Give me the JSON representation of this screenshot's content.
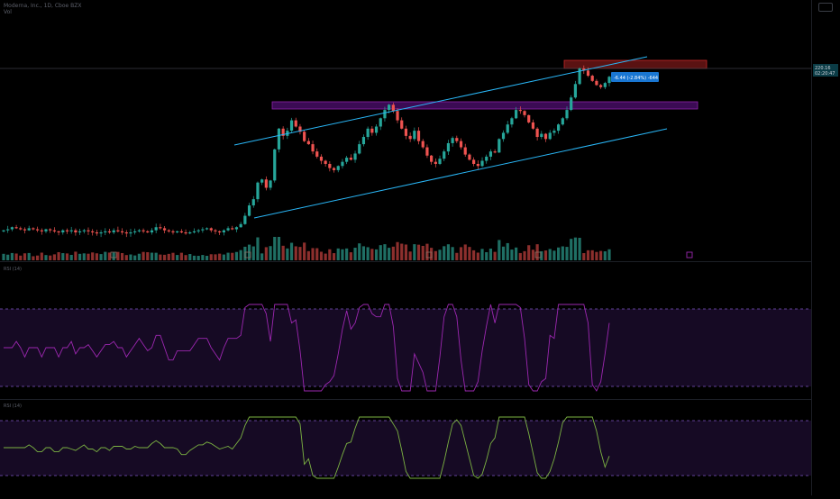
{
  "header": {
    "symbol": "Moderna, Inc., 1D, Cboe BZX",
    "sub": "Vol"
  },
  "last_price": {
    "value": "220.16",
    "countdown": "02:20:47",
    "change_label": "-6.44 (-2.84%) -644"
  },
  "rsi_panel": {
    "title": "RSI (14)"
  },
  "second_panel": {
    "title": "RSI (14)"
  },
  "colors": {
    "background": "#000000",
    "up": "#26a69a",
    "down": "#ef5350",
    "channel": "#29b6f6",
    "resistance_zone": "#7b1fa2",
    "top_zone": "#b71c1c",
    "rsi_band_fill": "#1d0a2e",
    "rsi_line": "#9c27b0",
    "osc_line": "#7cb342"
  },
  "chart_data": [
    {
      "type": "candlestick",
      "description_free": true,
      "x_unit": "trading days (index 0 = first visible bar)",
      "closes_estimated": [
        72,
        73,
        75,
        74,
        73,
        72,
        74,
        73,
        72,
        71,
        73,
        72,
        71,
        70,
        72,
        71,
        72,
        70,
        71,
        72,
        71,
        70,
        69,
        70,
        71,
        70,
        72,
        71,
        70,
        69,
        70,
        71,
        72,
        71,
        70,
        72,
        75,
        74,
        72,
        71,
        70,
        71,
        70,
        69,
        70,
        71,
        72,
        73,
        74,
        72,
        71,
        70,
        72,
        74,
        73,
        75,
        78,
        86,
        96,
        102,
        118,
        121,
        113,
        120,
        150,
        170,
        163,
        168,
        178,
        172,
        167,
        158,
        155,
        148,
        143,
        139,
        136,
        132,
        130,
        134,
        138,
        142,
        140,
        146,
        155,
        162,
        170,
        166,
        172,
        180,
        188,
        193,
        187,
        178,
        170,
        163,
        160,
        168,
        158,
        152,
        144,
        138,
        136,
        141,
        148,
        156,
        161,
        158,
        152,
        145,
        140,
        136,
        134,
        139,
        143,
        148,
        147,
        160,
        166,
        174,
        180,
        188,
        187,
        183,
        176,
        170,
        162,
        165,
        160,
        166,
        168,
        174,
        180,
        188,
        200,
        213,
        228,
        226,
        221,
        216,
        212,
        210,
        214,
        220
      ],
      "price_levels_shown": [
        "220.16"
      ],
      "annotations": [
        {
          "kind": "parallel-channel",
          "label": ""
        },
        {
          "kind": "zone",
          "label": ""
        },
        {
          "kind": "zone",
          "label": ""
        }
      ]
    }
  ]
}
